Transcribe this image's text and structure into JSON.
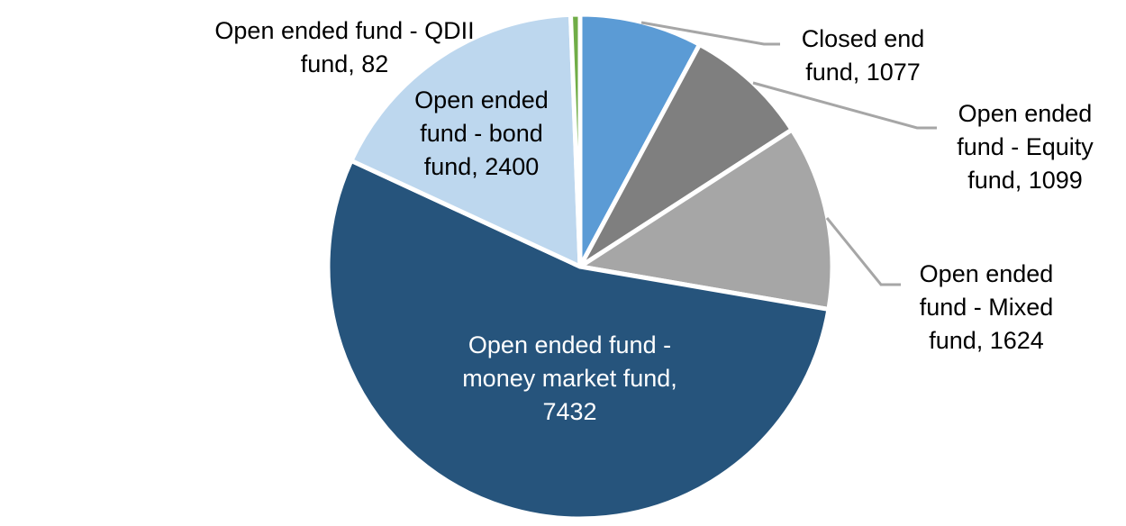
{
  "chart_data": {
    "type": "pie",
    "title": "",
    "legend": "none",
    "label_format": "category, value",
    "start_angle_deg": 0,
    "direction": "clockwise",
    "total": 13714,
    "slice_border_color": "#FFFFFF",
    "leader_line_color": "#A6A6A6",
    "slices": [
      {
        "label": "Closed end fund",
        "value": 1077,
        "color": "#5B9BD5",
        "label_lines": [
          "Closed end",
          "fund, 1077"
        ],
        "label_placement": "outside-right",
        "label_color": "#000000",
        "leader_line": true
      },
      {
        "label": "Open ended fund - Equity fund",
        "value": 1099,
        "color": "#7F7F7F",
        "label_lines": [
          "Open ended",
          "fund - Equity",
          "fund, 1099"
        ],
        "label_placement": "outside-right",
        "label_color": "#000000",
        "leader_line": true
      },
      {
        "label": "Open ended fund - Mixed fund",
        "value": 1624,
        "color": "#A6A6A6",
        "label_lines": [
          "Open ended",
          "fund - Mixed",
          "fund, 1624"
        ],
        "label_placement": "outside-right",
        "label_color": "#000000",
        "leader_line": true
      },
      {
        "label": "Open ended fund - money market fund",
        "value": 7432,
        "color": "#26547C",
        "label_lines": [
          "Open ended fund -",
          "money market fund,",
          "7432"
        ],
        "label_placement": "inside",
        "label_color": "#FFFFFF",
        "leader_line": false
      },
      {
        "label": "Open ended fund - bond fund",
        "value": 2400,
        "color": "#BDD7EE",
        "label_lines": [
          "Open ended",
          "fund - bond",
          "fund, 2400"
        ],
        "label_placement": "inside-top",
        "label_color": "#000000",
        "leader_line": false
      },
      {
        "label": "Open ended fund - QDII fund",
        "value": 82,
        "color": "#70AD47",
        "label_lines": [
          "Open ended fund - QDII",
          "fund, 82"
        ],
        "label_placement": "outside-left",
        "label_color": "#000000",
        "leader_line": false
      }
    ]
  }
}
